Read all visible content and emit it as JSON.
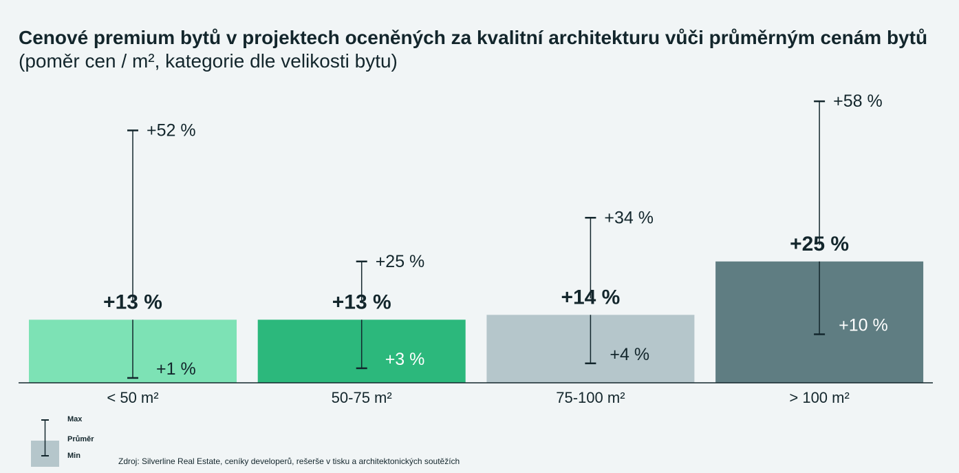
{
  "header": {
    "title_bold": "Cenové premium bytů v projektech oceněných za kvalitní architekturu vůči průměrným cenám bytů",
    "title_suffix": " (poměr cen / m², kategorie dle velikosti bytu)"
  },
  "legend": {
    "max": "Max",
    "avg": "Průměr",
    "min": "Min"
  },
  "source": "Zdroj: Silverline Real Estate, ceníky developerů, rešerše v tisku a architektonických soutěžích",
  "colors": {
    "background": "#f1f5f6",
    "text": "#13262c",
    "bar_colors": [
      "#7de2b5",
      "#2cb87c",
      "#b5c6cb",
      "#5f7d82"
    ],
    "legend_box": "#b5c6cb"
  },
  "chart_data": {
    "type": "bar",
    "categories": [
      "< 50 m²",
      "50-75 m²",
      "75-100 m²",
      "> 100 m²"
    ],
    "series": [
      {
        "values": [
          13,
          13,
          14,
          25
        ]
      }
    ],
    "min": [
      1,
      3,
      4,
      10
    ],
    "max": [
      52,
      25,
      34,
      58
    ],
    "avg_labels": [
      "+13 %",
      "+13 %",
      "+14 %",
      "+25 %"
    ],
    "min_labels": [
      "+1 %",
      "+3 %",
      "+4 %",
      "+10 %"
    ],
    "max_labels": [
      "+52 %",
      "+25 %",
      "+34 %",
      "+58 %"
    ],
    "ylim": [
      0,
      60
    ],
    "grid": false,
    "legend_position": "bottom-left"
  }
}
